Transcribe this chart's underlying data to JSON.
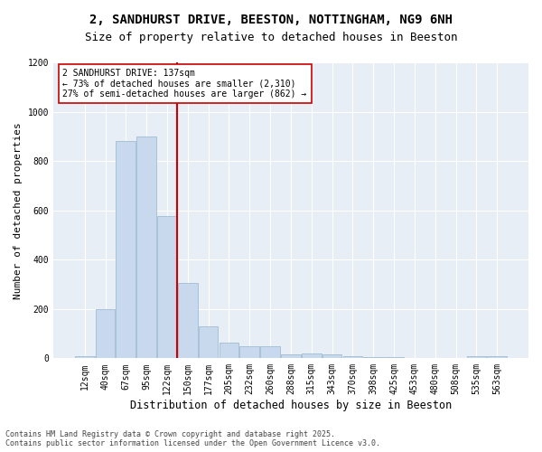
{
  "title1": "2, SANDHURST DRIVE, BEESTON, NOTTINGHAM, NG9 6NH",
  "title2": "Size of property relative to detached houses in Beeston",
  "xlabel": "Distribution of detached houses by size in Beeston",
  "ylabel": "Number of detached properties",
  "categories": [
    "12sqm",
    "40sqm",
    "67sqm",
    "95sqm",
    "122sqm",
    "150sqm",
    "177sqm",
    "205sqm",
    "232sqm",
    "260sqm",
    "288sqm",
    "315sqm",
    "343sqm",
    "370sqm",
    "398sqm",
    "425sqm",
    "453sqm",
    "480sqm",
    "508sqm",
    "535sqm",
    "563sqm"
  ],
  "values": [
    10,
    200,
    880,
    900,
    575,
    305,
    130,
    65,
    50,
    48,
    15,
    18,
    15,
    8,
    5,
    5,
    3,
    0,
    0,
    8,
    10
  ],
  "bar_color": "#c8d8ed",
  "bar_edge_color": "#a0bcd4",
  "vline_x": 4.5,
  "vline_color": "#cc0000",
  "annotation_text": "2 SANDHURST DRIVE: 137sqm\n← 73% of detached houses are smaller (2,310)\n27% of semi-detached houses are larger (862) →",
  "annotation_box_facecolor": "#ffffff",
  "annotation_box_edgecolor": "#cc0000",
  "ylim": [
    0,
    1200
  ],
  "yticks": [
    0,
    200,
    400,
    600,
    800,
    1000,
    1200
  ],
  "figure_bg": "#ffffff",
  "plot_bg": "#e8eef5",
  "grid_color": "#ffffff",
  "footer1": "Contains HM Land Registry data © Crown copyright and database right 2025.",
  "footer2": "Contains public sector information licensed under the Open Government Licence v3.0.",
  "title_fontsize": 10,
  "subtitle_fontsize": 9,
  "ylabel_fontsize": 8,
  "xlabel_fontsize": 8.5,
  "tick_fontsize": 7,
  "ann_fontsize": 7,
  "footer_fontsize": 6
}
